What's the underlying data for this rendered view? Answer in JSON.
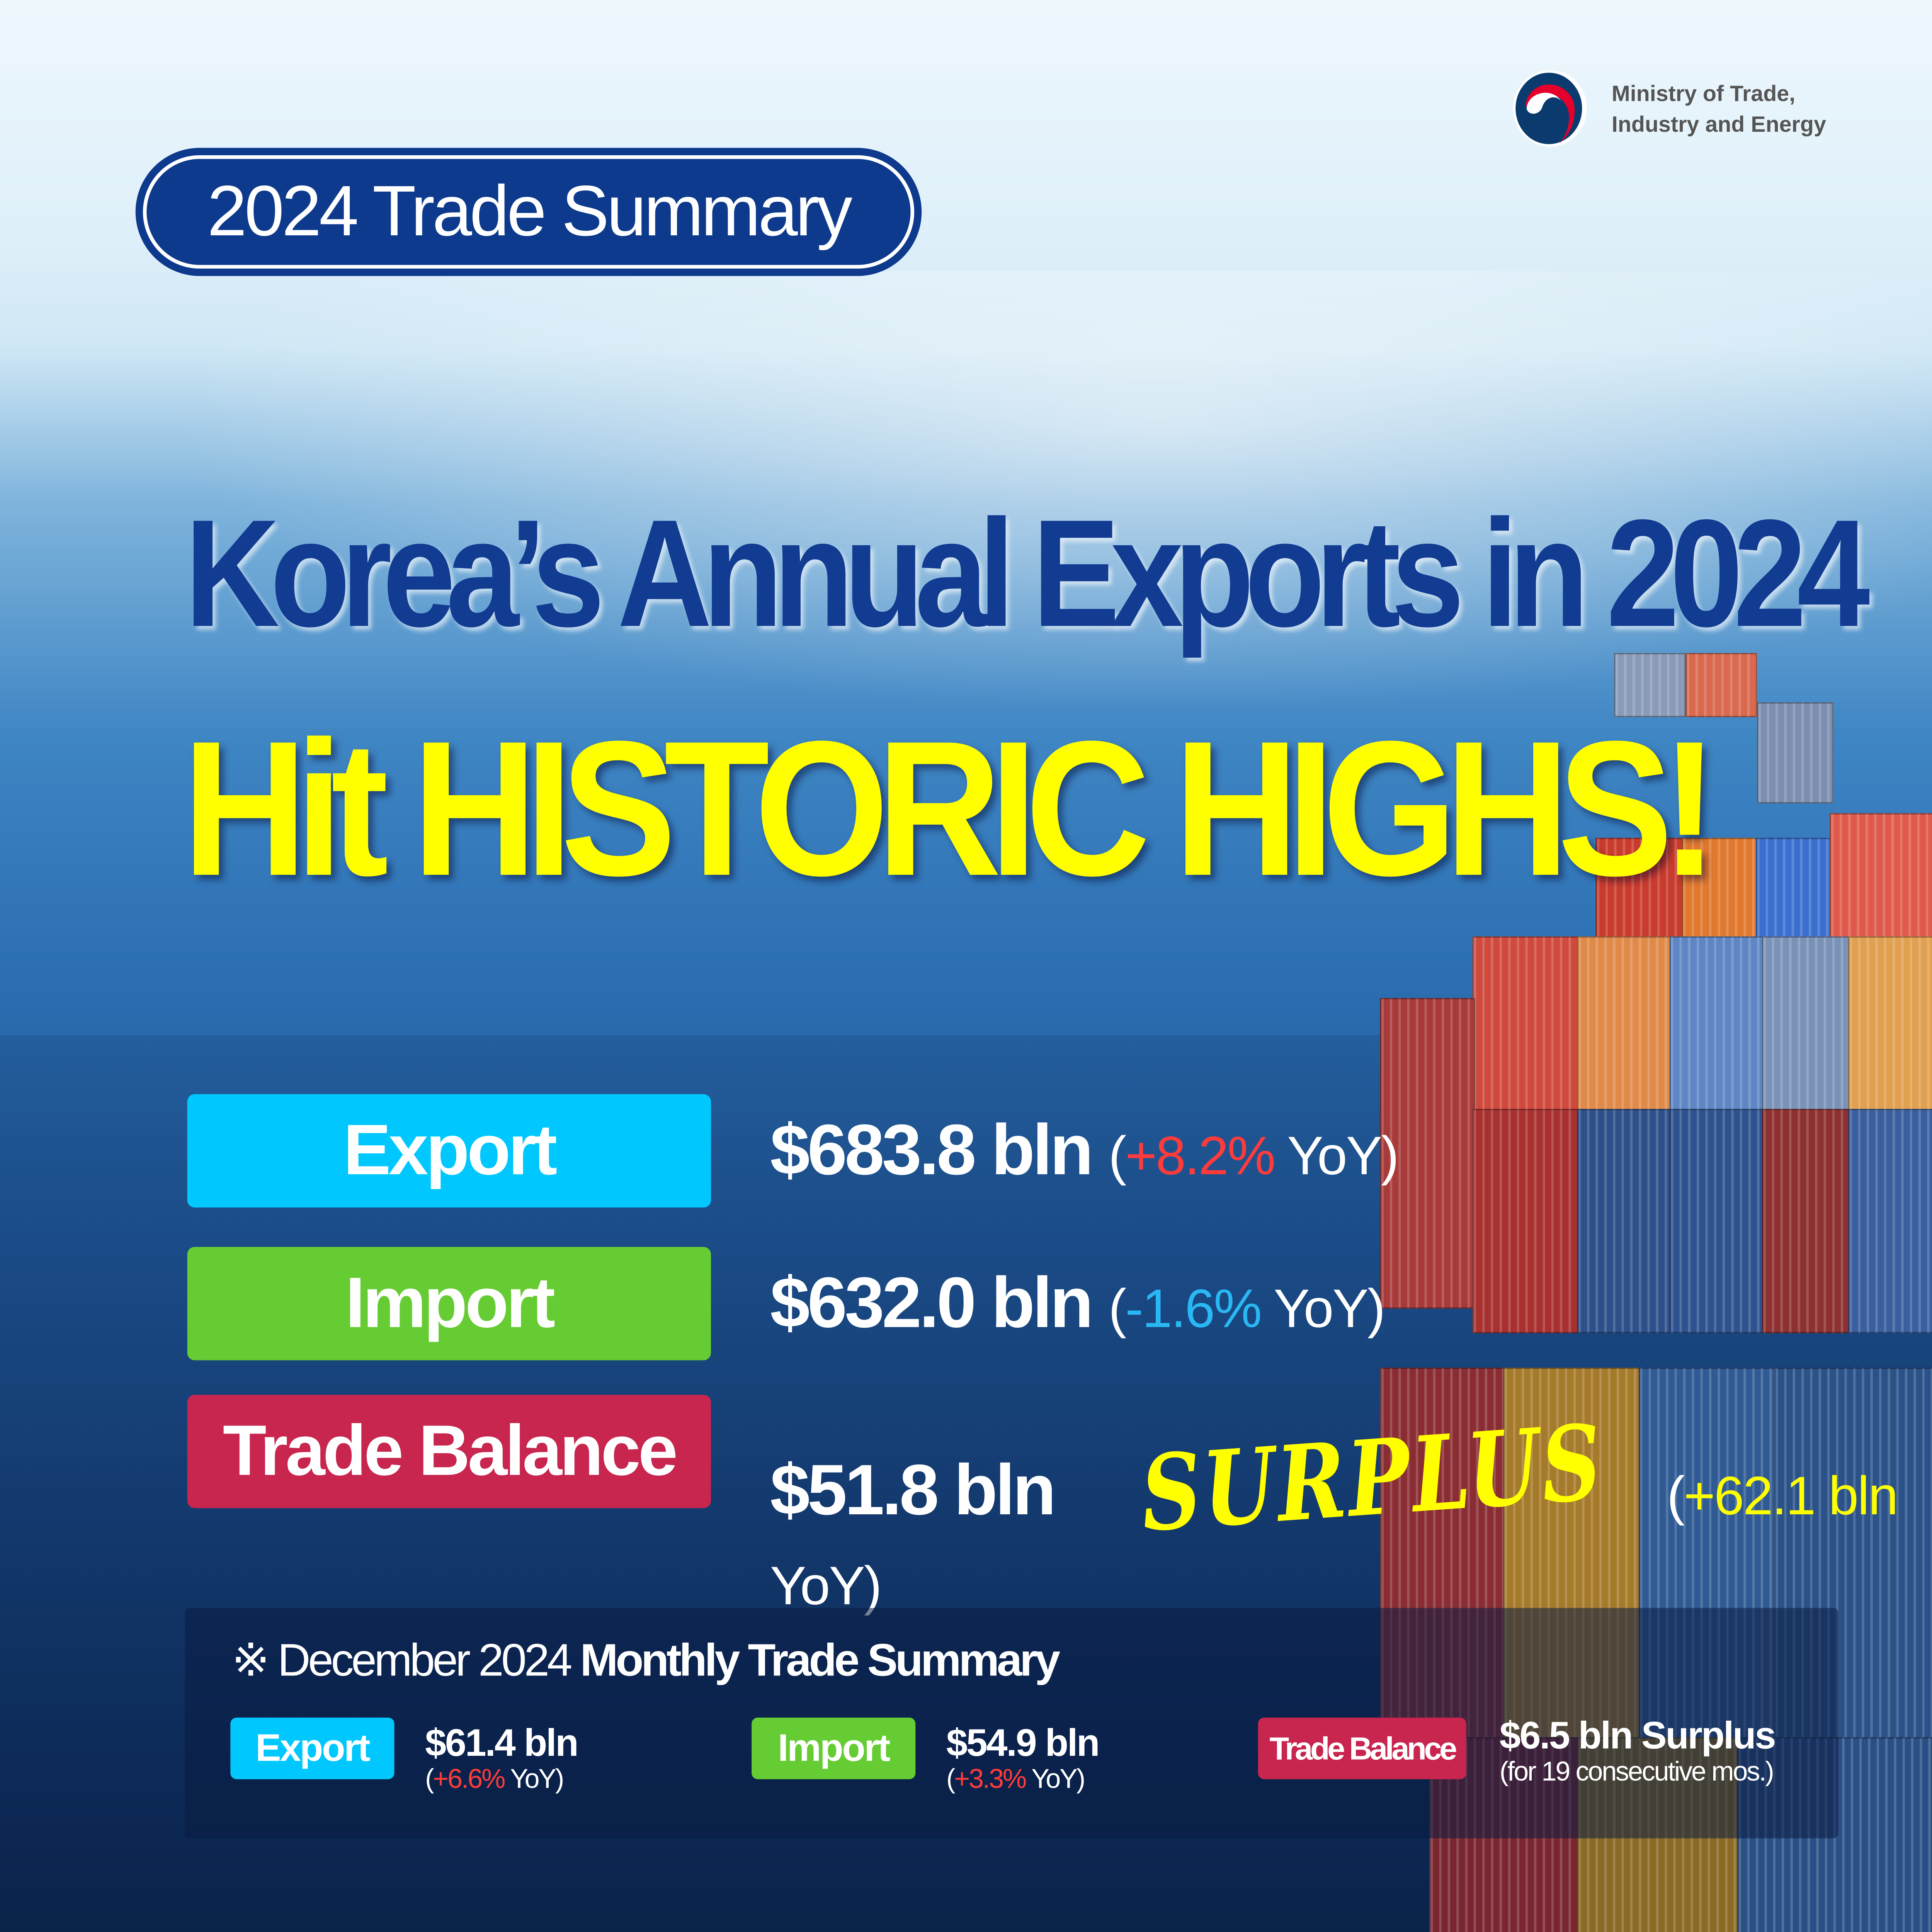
{
  "brand": {
    "ministry_line1": "Ministry of Trade,",
    "ministry_line2": "Industry and Energy",
    "colors": {
      "navy": "#0d3a8c",
      "red": "#e4002b"
    }
  },
  "header": {
    "pill_label": "2024 Trade Summary"
  },
  "headline": {
    "line1": "Korea’s Annual Exports in 2024",
    "line2": "Hit HISTORIC HIGHS!"
  },
  "annual": {
    "export": {
      "label": "Export",
      "value": "$683.8 bln",
      "open": "(",
      "change": "+8.2%",
      "suffix": " YoY)",
      "color": "#00c8ff"
    },
    "import": {
      "label": "Import",
      "value": "$632.0 bln",
      "open": "(",
      "change": "-1.6%",
      "suffix": " YoY)",
      "color": "#66cc33"
    },
    "balance": {
      "label": "Trade Balance",
      "value": "$51.8 bln",
      "tag": "SURPLUS",
      "open": "(",
      "change": "+62.1 bln",
      "suffix": " YoY)",
      "color": "#c8254f"
    }
  },
  "monthly": {
    "mark": "※",
    "heading_light": "December 2024",
    "heading_bold": "Monthly Trade Summary",
    "export": {
      "label": "Export",
      "value": "$61.4 bln",
      "open": "(",
      "change": "+6.6%",
      "suffix": " YoY)"
    },
    "import": {
      "label": "Import",
      "value": "$54.9 bln",
      "open": "(",
      "change": "+3.3%",
      "suffix": " YoY)"
    },
    "balance": {
      "label": "Trade Balance",
      "value": "$6.5 bln Surplus",
      "note": "(for 19 consecutive mos.)"
    }
  }
}
